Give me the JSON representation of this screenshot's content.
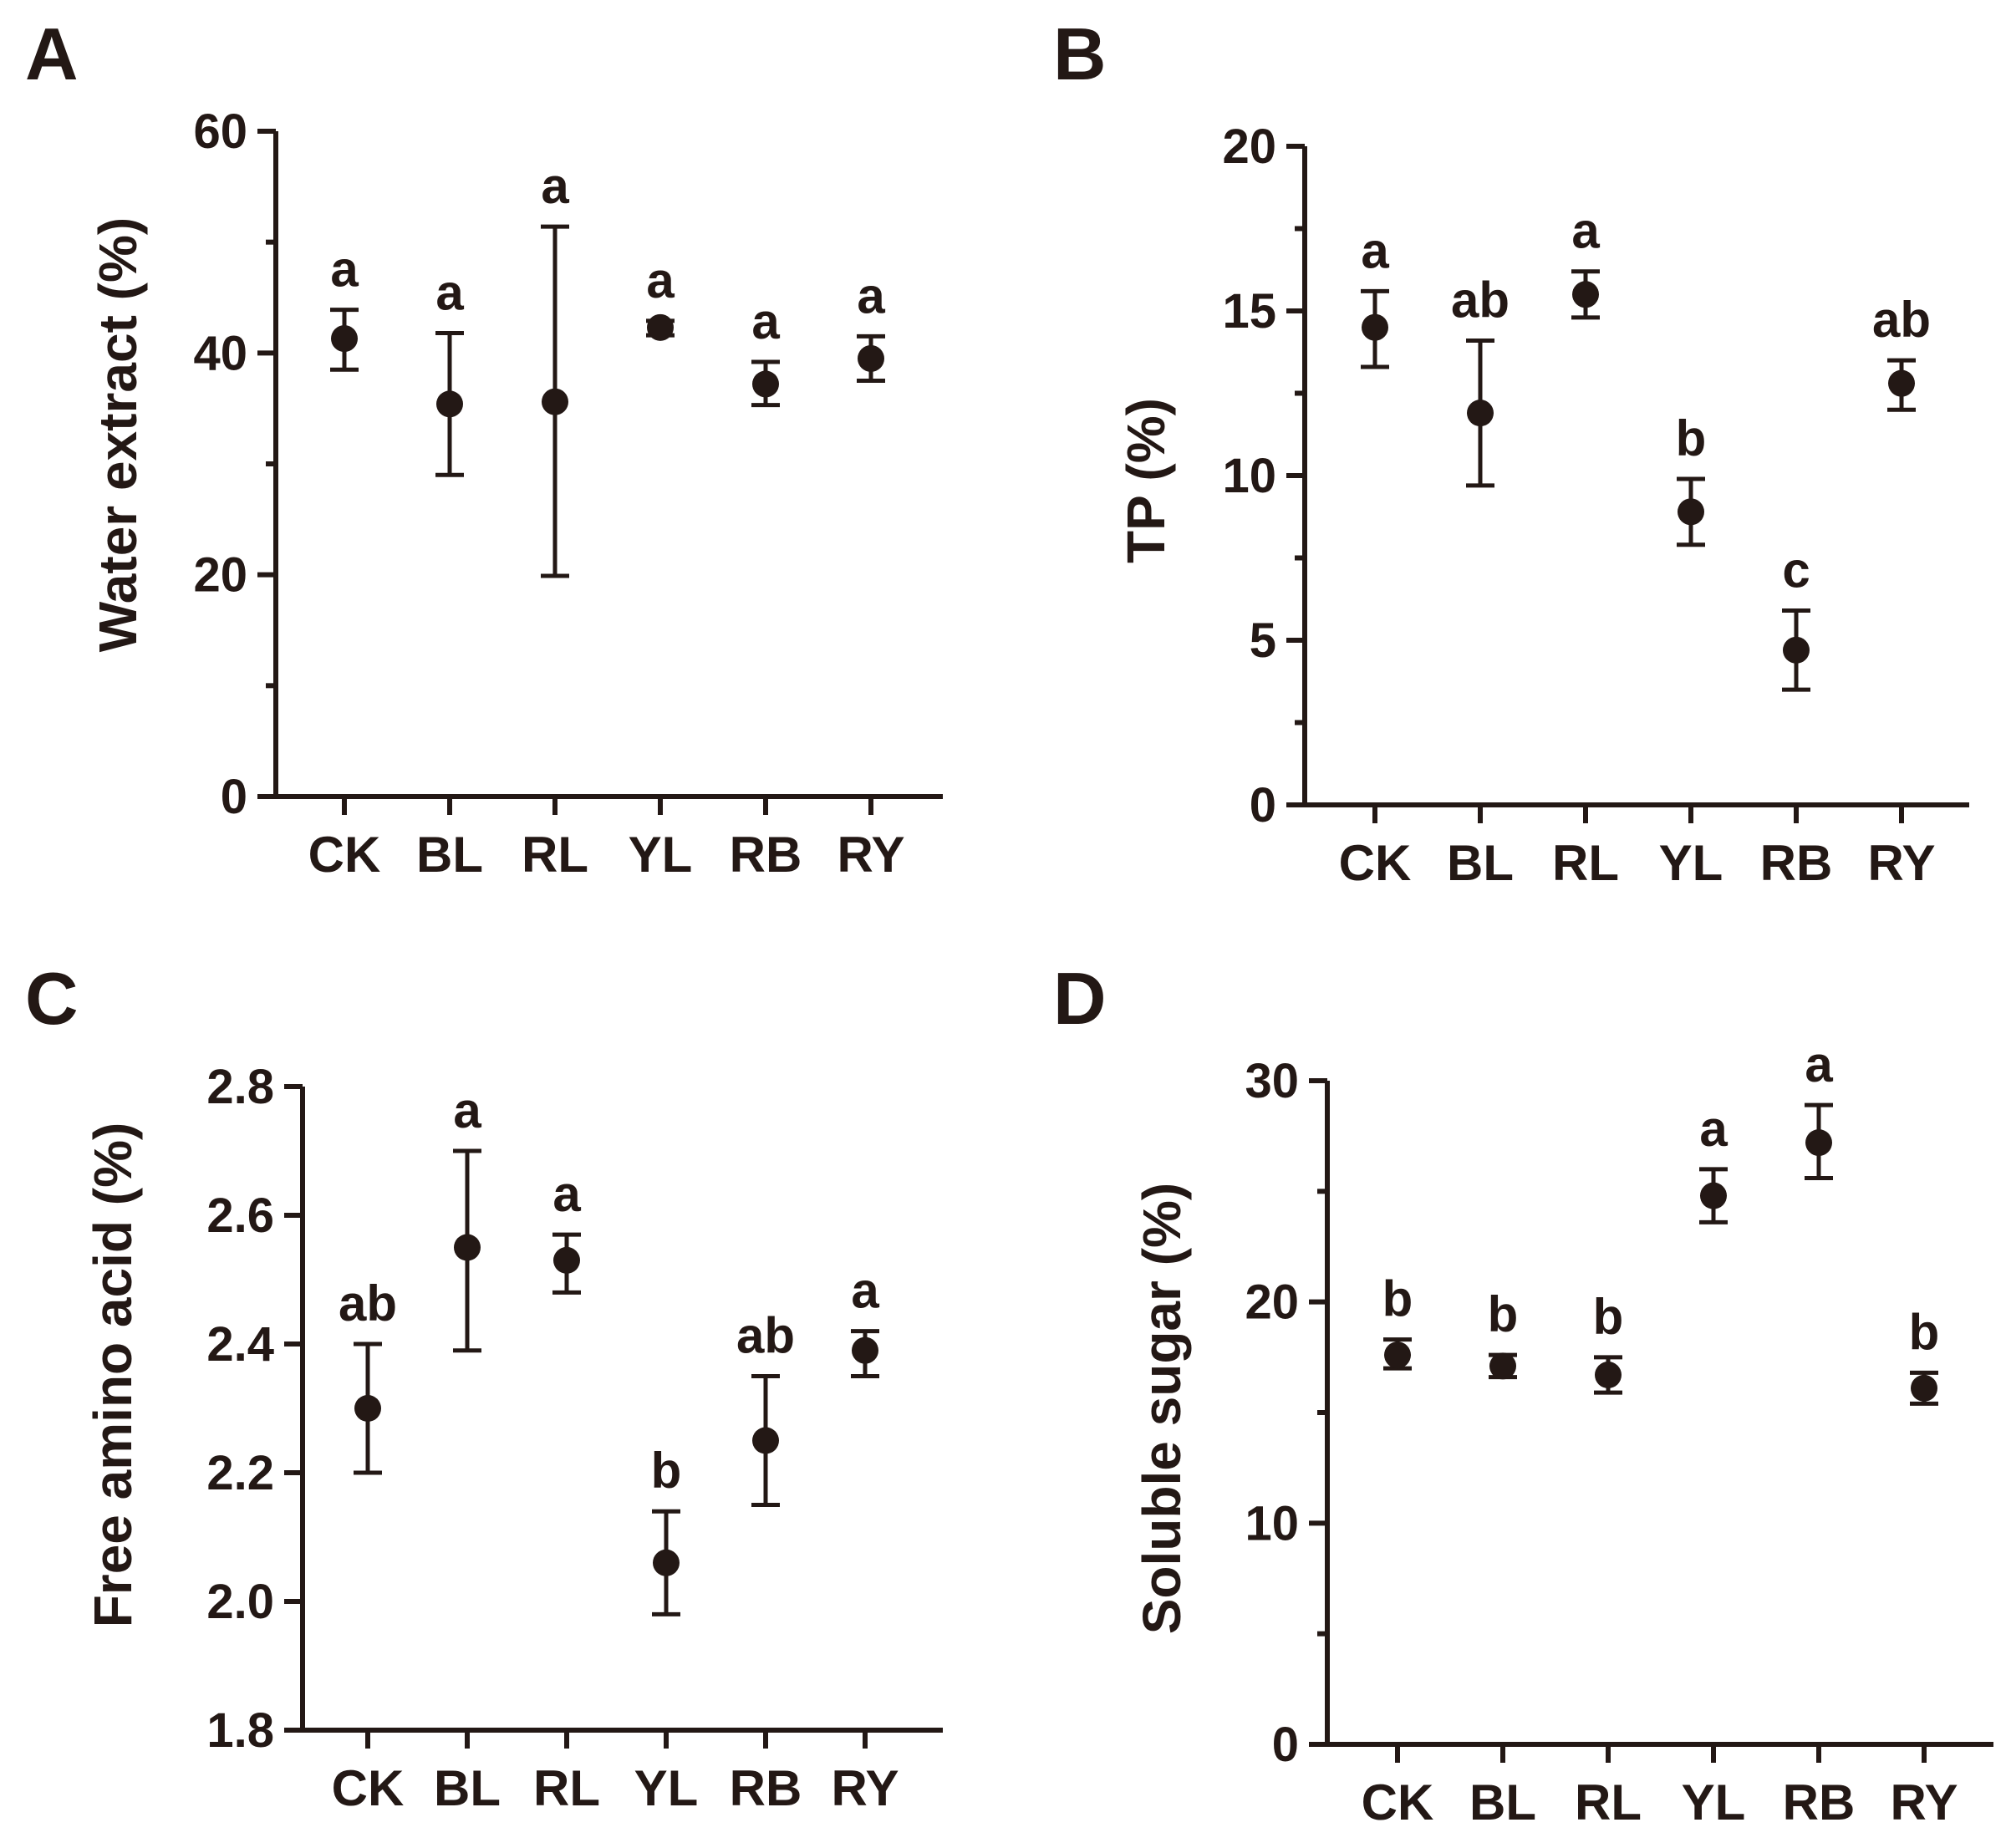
{
  "chart_data": [
    {
      "panel": "A",
      "type": "scatter",
      "categories": [
        "CK",
        "BL",
        "RL",
        "YL",
        "RB",
        "RY"
      ],
      "values": [
        41.3,
        35.4,
        35.6,
        42.3,
        37.2,
        39.5
      ],
      "err_low": [
        38.5,
        29.0,
        19.9,
        41.6,
        35.3,
        37.5
      ],
      "err_high": [
        43.9,
        41.8,
        51.4,
        42.9,
        39.2,
        41.5
      ],
      "letters": [
        "a",
        "a",
        "a",
        "a",
        "a",
        "a"
      ],
      "ylabel": "Water extract (%)",
      "ylim": [
        0,
        60
      ],
      "yticks": [
        0,
        20,
        40,
        60
      ],
      "y_minor_ticks": [
        10,
        30,
        50
      ]
    },
    {
      "panel": "B",
      "type": "scatter",
      "categories": [
        "CK",
        "BL",
        "RL",
        "YL",
        "RB",
        "RY"
      ],
      "values": [
        14.5,
        11.9,
        15.5,
        8.9,
        4.7,
        12.8
      ],
      "err_low": [
        13.3,
        9.7,
        14.8,
        7.9,
        3.5,
        12.0
      ],
      "err_high": [
        15.6,
        14.1,
        16.2,
        9.9,
        5.9,
        13.5
      ],
      "letters": [
        "a",
        "ab",
        "a",
        "b",
        "c",
        "ab"
      ],
      "ylabel": "TP (%)",
      "ylim": [
        0,
        20
      ],
      "yticks": [
        0,
        5,
        10,
        15,
        20
      ],
      "y_minor_ticks": [
        2.5,
        7.5,
        12.5,
        17.5
      ]
    },
    {
      "panel": "C",
      "type": "scatter",
      "categories": [
        "CK",
        "BL",
        "RL",
        "YL",
        "RB",
        "RY"
      ],
      "values": [
        2.3,
        2.55,
        2.53,
        2.06,
        2.25,
        2.39
      ],
      "err_low": [
        2.2,
        2.39,
        2.48,
        1.98,
        2.15,
        2.35
      ],
      "err_high": [
        2.4,
        2.7,
        2.57,
        2.14,
        2.35,
        2.42
      ],
      "letters": [
        "ab",
        "a",
        "a",
        "b",
        "ab",
        "a"
      ],
      "ylabel": "Free amino acid (%)",
      "ylim": [
        1.8,
        2.8
      ],
      "yticks": [
        1.8,
        2.0,
        2.2,
        2.4,
        2.6,
        2.8
      ],
      "y_tick_labels": [
        "1.8",
        "2.0",
        "2.2",
        "2.4",
        "2.6",
        "2.8"
      ],
      "y_minor_ticks": []
    },
    {
      "panel": "D",
      "type": "scatter",
      "categories": [
        "CK",
        "BL",
        "RL",
        "YL",
        "RB",
        "RY"
      ],
      "values": [
        17.6,
        17.1,
        16.7,
        24.8,
        27.2,
        16.1
      ],
      "err_low": [
        17.0,
        16.6,
        15.9,
        23.6,
        25.6,
        15.4
      ],
      "err_high": [
        18.3,
        17.6,
        17.5,
        26.0,
        28.9,
        16.8
      ],
      "letters": [
        "b",
        "b",
        "b",
        "a",
        "a",
        "b"
      ],
      "ylabel": "Soluble sugar (%)",
      "ylim": [
        0,
        30
      ],
      "yticks": [
        0,
        10,
        20,
        30
      ],
      "y_minor_ticks": [
        5,
        15,
        25
      ]
    }
  ]
}
